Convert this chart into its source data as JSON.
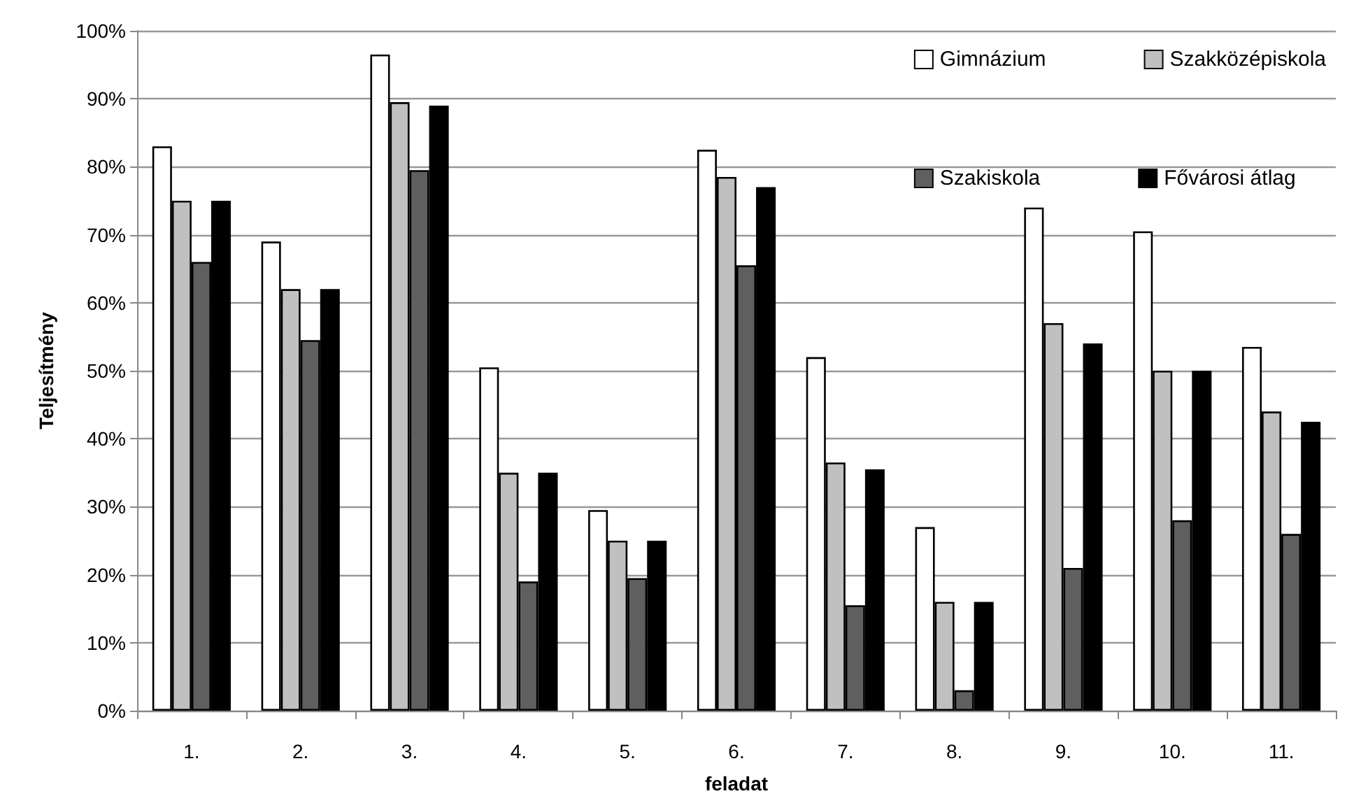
{
  "chart_data": {
    "type": "bar",
    "xlabel": "feladat",
    "ylabel": "Teljesítmény",
    "categories": [
      "1.",
      "2.",
      "3.",
      "4.",
      "5.",
      "6.",
      "7.",
      "8.",
      "9.",
      "10.",
      "11."
    ],
    "series": [
      {
        "name": "Gimnázium",
        "color": "#ffffff",
        "values": [
          83,
          69,
          96.5,
          50.5,
          29.5,
          82.5,
          52,
          27,
          74,
          70.5,
          53.5
        ]
      },
      {
        "name": "Szakközépiskola",
        "color": "#c0c0c0",
        "values": [
          75,
          62,
          89.5,
          35,
          25,
          78.5,
          36.5,
          16,
          57,
          50,
          44
        ]
      },
      {
        "name": "Szakiskola",
        "color": "#5f5f5f",
        "values": [
          66,
          54.5,
          79.5,
          19,
          19.5,
          65.5,
          15.5,
          3,
          21,
          28,
          26
        ]
      },
      {
        "name": "Fővárosi átlag",
        "color": "#000000",
        "values": [
          75,
          62,
          89,
          35,
          25,
          77,
          35.5,
          16,
          54,
          50,
          42.5
        ]
      }
    ],
    "ylim": [
      0,
      100
    ],
    "yticks": [
      {
        "value": 0,
        "label": "0%"
      },
      {
        "value": 10,
        "label": "10%"
      },
      {
        "value": 20,
        "label": "20%"
      },
      {
        "value": 30,
        "label": "30%"
      },
      {
        "value": 40,
        "label": "40%"
      },
      {
        "value": 50,
        "label": "50%"
      },
      {
        "value": 60,
        "label": "60%"
      },
      {
        "value": 70,
        "label": "70%"
      },
      {
        "value": 80,
        "label": "80%"
      },
      {
        "value": 90,
        "label": "90%"
      },
      {
        "value": 100,
        "label": "100%"
      }
    ],
    "grid": "y",
    "legend": "top right"
  }
}
